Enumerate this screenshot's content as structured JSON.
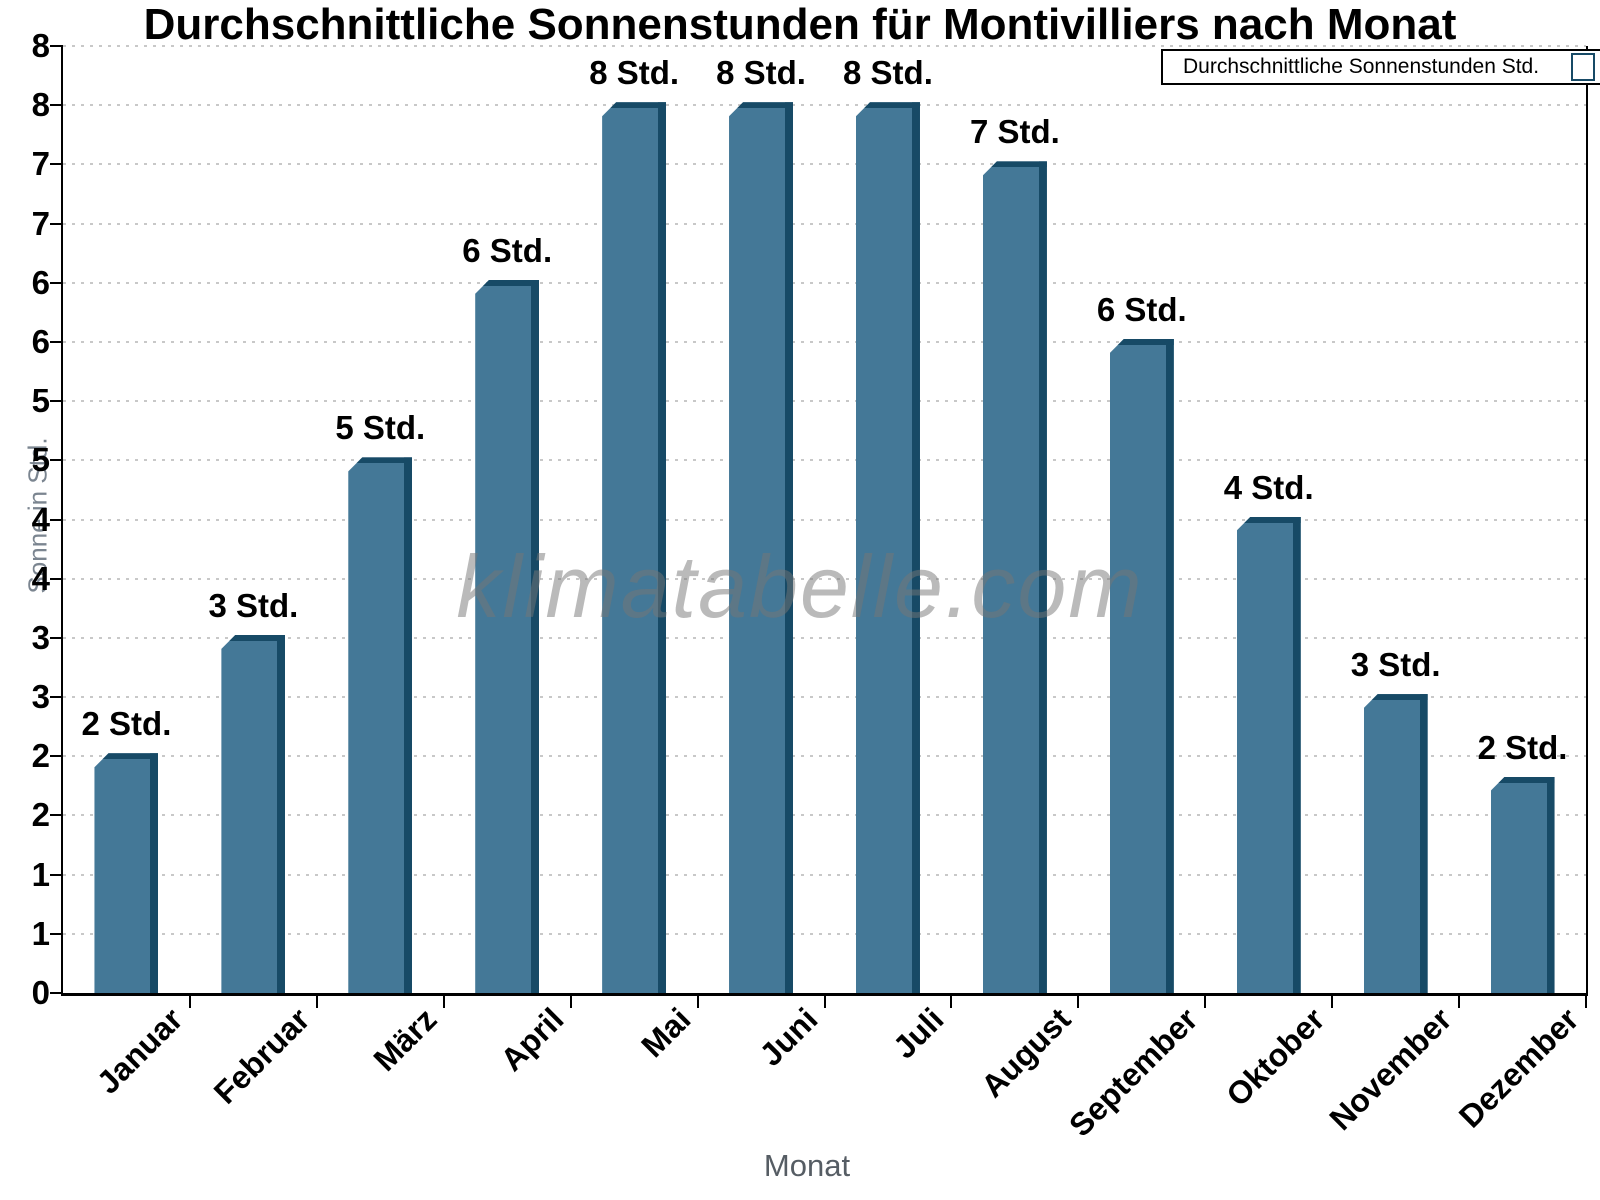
{
  "title": "Durchschnittliche Sonnenstunden für Montivilliers nach Monat",
  "watermark": "klimatabelle.com",
  "legend": {
    "label": "Durchschnittliche Sonnenstunden Std."
  },
  "axes": {
    "y_title": "Sonne in Std.",
    "x_title": "Monat",
    "y_tick_labels_bottom_to_top": [
      "0",
      "1",
      "1",
      "2",
      "2",
      "3",
      "3",
      "4",
      "4",
      "5",
      "5",
      "6",
      "6",
      "7",
      "7",
      "8",
      "8"
    ]
  },
  "chart_data": {
    "type": "bar",
    "title": "Durchschnittliche Sonnenstunden für Montivilliers nach Monat",
    "xlabel": "Monat",
    "ylabel": "Sonne in Std.",
    "categories": [
      "Januar",
      "Februar",
      "März",
      "April",
      "Mai",
      "Juni",
      "Juli",
      "August",
      "September",
      "Oktober",
      "November",
      "Dezember"
    ],
    "values": [
      2,
      3,
      4.5,
      6,
      7.5,
      7.5,
      7.5,
      7,
      5.5,
      4,
      2.5,
      1.8
    ],
    "bar_labels": [
      "2 Std.",
      "3 Std.",
      "5 Std.",
      "6 Std.",
      "8 Std.",
      "8 Std.",
      "8 Std.",
      "7 Std.",
      "6 Std.",
      "4 Std.",
      "3 Std.",
      "2 Std."
    ],
    "series_name": "Durchschnittliche Sonnenstunden Std.",
    "ylim": [
      0,
      8
    ],
    "y_tick_step": 0.5,
    "grid": "horizontal-dotted",
    "legend_position": "top-right"
  },
  "colors": {
    "bar_face": "#447897",
    "bar_edge": "#174a66",
    "gridline": "#c8c8c8",
    "axis": "#000000",
    "axis_title_gray": "#6a737d",
    "watermark_gray": "#b5b5b5"
  }
}
